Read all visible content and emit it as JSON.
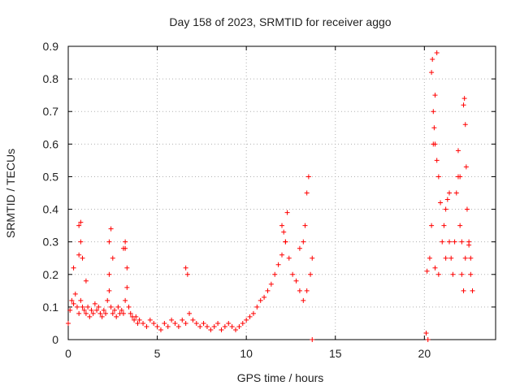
{
  "chart_data": {
    "type": "scatter",
    "title": "Day 158 of 2023, SRMTID for receiver aggo",
    "xlabel": "GPS time / hours",
    "ylabel": "SRMTID / TECUs",
    "xlim": [
      0,
      24
    ],
    "ylim": [
      0,
      0.9
    ],
    "x_ticks": [
      "0",
      "5",
      "10",
      "15",
      "20"
    ],
    "y_ticks": [
      "0",
      "0.1",
      "0.2",
      "0.3",
      "0.4",
      "0.5",
      "0.6",
      "0.7",
      "0.8",
      "0.9"
    ],
    "grid": true,
    "marker": "+",
    "color": "#ff0000",
    "series": [
      {
        "name": "SRMTID",
        "x": [
          0.0,
          0.1,
          0.2,
          0.3,
          0.4,
          0.5,
          0.6,
          0.7,
          0.8,
          0.9,
          1.0,
          1.1,
          1.2,
          1.3,
          1.4,
          1.5,
          1.6,
          1.7,
          1.8,
          1.9,
          2.0,
          2.1,
          2.2,
          2.3,
          2.4,
          2.5,
          2.6,
          2.7,
          2.8,
          2.9,
          3.0,
          3.1,
          3.2,
          3.3,
          3.4,
          3.5,
          3.6,
          3.7,
          3.8,
          3.9,
          4.0,
          4.2,
          4.4,
          4.6,
          4.8,
          5.0,
          5.2,
          5.4,
          5.6,
          5.8,
          6.0,
          6.2,
          6.4,
          6.6,
          6.8,
          7.0,
          7.2,
          7.4,
          7.6,
          7.8,
          8.0,
          8.2,
          8.4,
          8.6,
          8.8,
          9.0,
          9.2,
          9.4,
          9.6,
          9.8,
          10.0,
          10.2,
          10.4,
          10.6,
          10.8,
          11.0,
          11.2,
          11.4,
          11.6,
          11.8,
          12.0,
          12.2,
          12.4,
          12.6,
          12.8,
          13.0,
          13.2,
          13.4,
          13.6,
          13.7,
          0.3,
          0.6,
          0.7,
          0.8,
          1.0,
          2.3,
          2.4,
          2.5,
          3.1,
          3.2,
          3.3,
          6.6,
          6.7,
          12.1,
          12.3,
          13.2,
          13.3,
          13.4,
          0.6,
          0.7,
          2.3,
          3.2,
          12.0,
          12.2,
          13.0,
          13.5,
          20.2,
          20.3,
          20.4,
          20.5,
          20.6,
          20.7,
          20.8,
          20.9,
          21.0,
          21.1,
          21.2,
          21.3,
          21.4,
          21.5,
          21.6,
          21.7,
          21.8,
          21.9,
          22.0,
          22.1,
          22.2,
          22.3,
          22.4,
          22.5,
          22.6,
          22.7,
          20.4,
          20.45,
          20.5,
          20.55,
          20.6,
          20.7,
          21.4,
          21.9,
          22.0,
          22.2,
          22.25,
          22.3,
          22.35,
          22.1,
          21.2,
          20.8,
          20.6,
          22.5,
          22.6,
          20.1,
          20.15,
          13.7
        ],
        "y": [
          0.05,
          0.09,
          0.12,
          0.11,
          0.14,
          0.1,
          0.08,
          0.12,
          0.1,
          0.09,
          0.08,
          0.1,
          0.07,
          0.09,
          0.08,
          0.11,
          0.09,
          0.1,
          0.08,
          0.07,
          0.09,
          0.08,
          0.12,
          0.15,
          0.1,
          0.08,
          0.09,
          0.07,
          0.1,
          0.08,
          0.09,
          0.08,
          0.12,
          0.16,
          0.1,
          0.08,
          0.07,
          0.06,
          0.07,
          0.05,
          0.06,
          0.05,
          0.04,
          0.06,
          0.05,
          0.04,
          0.03,
          0.05,
          0.04,
          0.06,
          0.05,
          0.04,
          0.06,
          0.05,
          0.08,
          0.06,
          0.05,
          0.04,
          0.05,
          0.04,
          0.03,
          0.04,
          0.05,
          0.03,
          0.04,
          0.05,
          0.04,
          0.03,
          0.04,
          0.05,
          0.06,
          0.07,
          0.08,
          0.1,
          0.12,
          0.13,
          0.15,
          0.17,
          0.2,
          0.23,
          0.26,
          0.3,
          0.25,
          0.2,
          0.18,
          0.15,
          0.12,
          0.15,
          0.2,
          0.25,
          0.22,
          0.35,
          0.3,
          0.25,
          0.18,
          0.3,
          0.34,
          0.25,
          0.28,
          0.3,
          0.22,
          0.22,
          0.2,
          0.33,
          0.39,
          0.3,
          0.35,
          0.45,
          0.26,
          0.36,
          0.2,
          0.28,
          0.35,
          0.3,
          0.28,
          0.5,
          0.0,
          0.25,
          0.35,
          0.6,
          0.75,
          0.88,
          0.5,
          0.42,
          0.3,
          0.35,
          0.4,
          0.43,
          0.3,
          0.25,
          0.2,
          0.3,
          0.45,
          0.5,
          0.35,
          0.2,
          0.15,
          0.25,
          0.4,
          0.3,
          0.2,
          0.15,
          0.82,
          0.86,
          0.7,
          0.65,
          0.6,
          0.55,
          0.45,
          0.58,
          0.5,
          0.72,
          0.74,
          0.66,
          0.53,
          0.3,
          0.25,
          0.2,
          0.22,
          0.29,
          0.25,
          0.02,
          0.21,
          0.0
        ]
      }
    ]
  }
}
